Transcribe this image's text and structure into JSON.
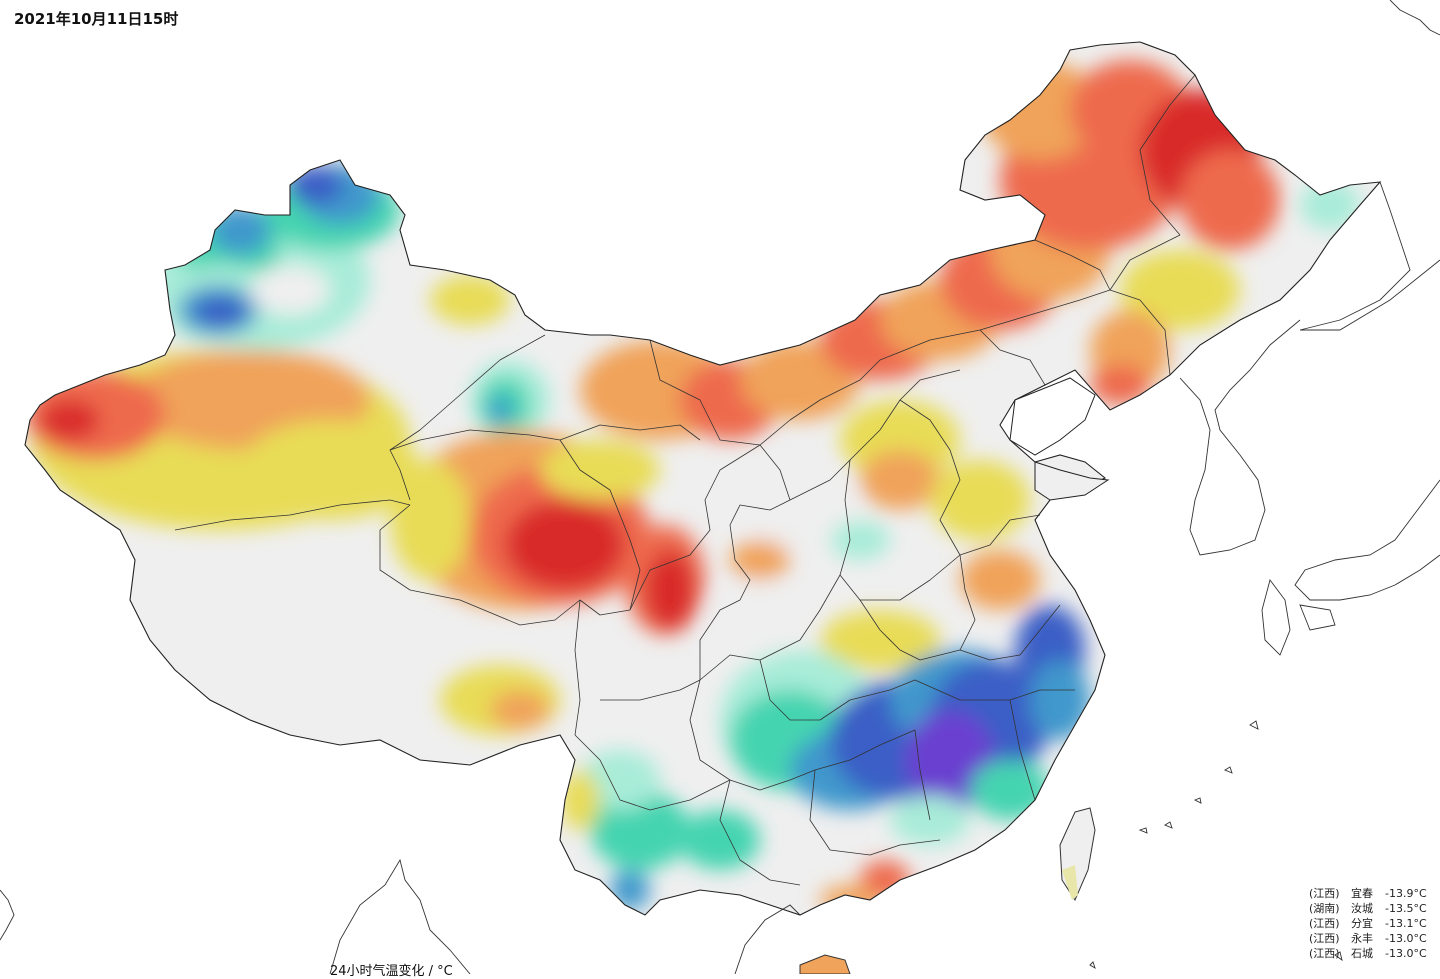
{
  "map": {
    "timestamp": "2021年10月11日15时",
    "legend_title": "24小时气温变化 / °C",
    "ranking": [
      {
        "province": "(江西)",
        "station": "宜春",
        "value": "-13.9°C"
      },
      {
        "province": "(湖南)",
        "station": "汝城",
        "value": "-13.5°C"
      },
      {
        "province": "(江西)",
        "station": "分宜",
        "value": "-13.1°C"
      },
      {
        "province": "(江西)",
        "station": "永丰",
        "value": "-13.0°C"
      },
      {
        "province": "(江西)",
        "station": "石城",
        "value": "-13.0°C"
      }
    ]
  },
  "colors": {
    "strong_warm": "#d92b2b",
    "warm": "#ee6b4d",
    "mild_warm": "#f0a35a",
    "slight_warm": "#e8dc56",
    "neutral": "#efefef",
    "slight_cool": "#a8ecd8",
    "cool": "#45d4b0",
    "cold": "#3f98cc",
    "strong_cold": "#3a5fc6",
    "extreme_cold": "#6a3fd0"
  }
}
